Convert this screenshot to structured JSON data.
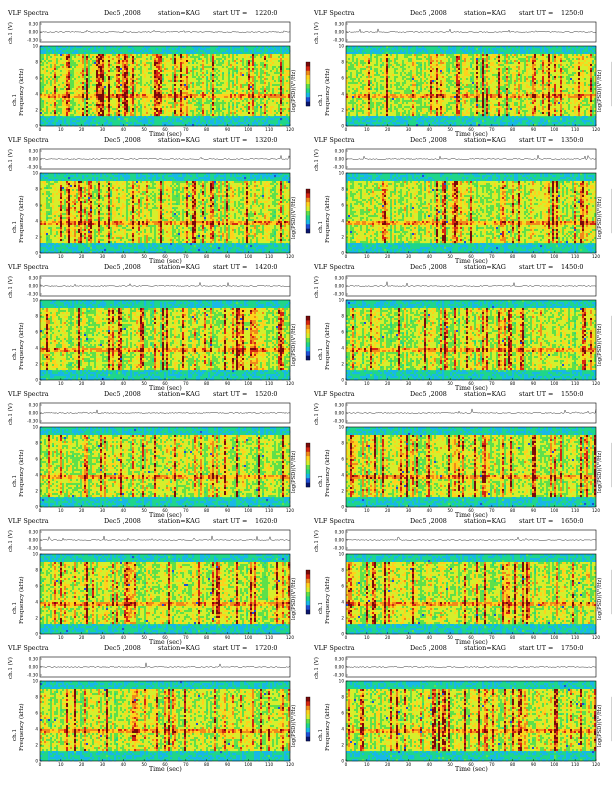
{
  "colors": {
    "spectrum": [
      "#1e4fd8",
      "#18b8e6",
      "#1fd68a",
      "#5fe04a",
      "#d6ee2c",
      "#ffd21c",
      "#f08a1a",
      "#d62612",
      "#7a0a0a"
    ],
    "colorbar": [
      "#7a0a0a",
      "#d62612",
      "#f08a1a",
      "#ffd21c",
      "#d6ee2c",
      "#5fe04a",
      "#1fd68a",
      "#18b8e6",
      "#1e4fd8",
      "#0a1670"
    ]
  },
  "common": {
    "title": "VLF Spectra",
    "date": "Dec5 ,2008",
    "station": "station=KAG",
    "start_label": "start  UT =",
    "chv_label": "ch.1 (V)",
    "ylabel_1": "ch.1",
    "ylabel_2": "Frequency  (kHz)",
    "xlabel": "Time  (sec)",
    "cblabel": "log(PSD)(V²/Hz)",
    "chv_ticks": [
      "0.30",
      "0.00",
      "-0.30"
    ],
    "freq_ticks": [
      "10",
      "8",
      "6",
      "4",
      "2",
      "0"
    ],
    "time_ticks": [
      "0",
      "10",
      "20",
      "30",
      "40",
      "50",
      "60",
      "70",
      "80",
      "90",
      "100",
      "110",
      "120"
    ]
  },
  "chart_data": [
    {
      "type": "heatmap",
      "start_ut": "1220:0",
      "x": [
        0,
        120
      ],
      "ylim": [
        0,
        10
      ],
      "xlabel": "Time (sec)",
      "ylabel": "Frequency (kHz)"
    },
    {
      "type": "heatmap",
      "start_ut": "1250:0",
      "x": [
        0,
        120
      ],
      "ylim": [
        0,
        10
      ],
      "xlabel": "Time (sec)",
      "ylabel": "Frequency (kHz)"
    },
    {
      "type": "heatmap",
      "start_ut": "1320:0",
      "x": [
        0,
        120
      ],
      "ylim": [
        0,
        10
      ],
      "xlabel": "Time (sec)",
      "ylabel": "Frequency (kHz)"
    },
    {
      "type": "heatmap",
      "start_ut": "1350:0",
      "x": [
        0,
        120
      ],
      "ylim": [
        0,
        10
      ],
      "xlabel": "Time (sec)",
      "ylabel": "Frequency (kHz)"
    },
    {
      "type": "heatmap",
      "start_ut": "1420:0",
      "x": [
        0,
        120
      ],
      "ylim": [
        0,
        10
      ],
      "xlabel": "Time (sec)",
      "ylabel": "Frequency (kHz)"
    },
    {
      "type": "heatmap",
      "start_ut": "1450:0",
      "x": [
        0,
        120
      ],
      "ylim": [
        0,
        10
      ],
      "xlabel": "Time (sec)",
      "ylabel": "Frequency (kHz)"
    },
    {
      "type": "heatmap",
      "start_ut": "1520:0",
      "x": [
        0,
        120
      ],
      "ylim": [
        0,
        10
      ],
      "xlabel": "Time (sec)",
      "ylabel": "Frequency (kHz)"
    },
    {
      "type": "heatmap",
      "start_ut": "1550:0",
      "x": [
        0,
        120
      ],
      "ylim": [
        0,
        10
      ],
      "xlabel": "Time (sec)",
      "ylabel": "Frequency (kHz)"
    },
    {
      "type": "heatmap",
      "start_ut": "1620:0",
      "x": [
        0,
        120
      ],
      "ylim": [
        0,
        10
      ],
      "xlabel": "Time (sec)",
      "ylabel": "Frequency (kHz)"
    },
    {
      "type": "heatmap",
      "start_ut": "1650:0",
      "x": [
        0,
        120
      ],
      "ylim": [
        0,
        10
      ],
      "xlabel": "Time (sec)",
      "ylabel": "Frequency (kHz)"
    },
    {
      "type": "heatmap",
      "start_ut": "1720:0",
      "x": [
        0,
        120
      ],
      "ylim": [
        0,
        10
      ],
      "xlabel": "Time (sec)",
      "ylabel": "Frequency (kHz)"
    },
    {
      "type": "heatmap",
      "start_ut": "1750:0",
      "x": [
        0,
        120
      ],
      "ylim": [
        0,
        10
      ],
      "xlabel": "Time (sec)",
      "ylabel": "Frequency (kHz)"
    }
  ]
}
